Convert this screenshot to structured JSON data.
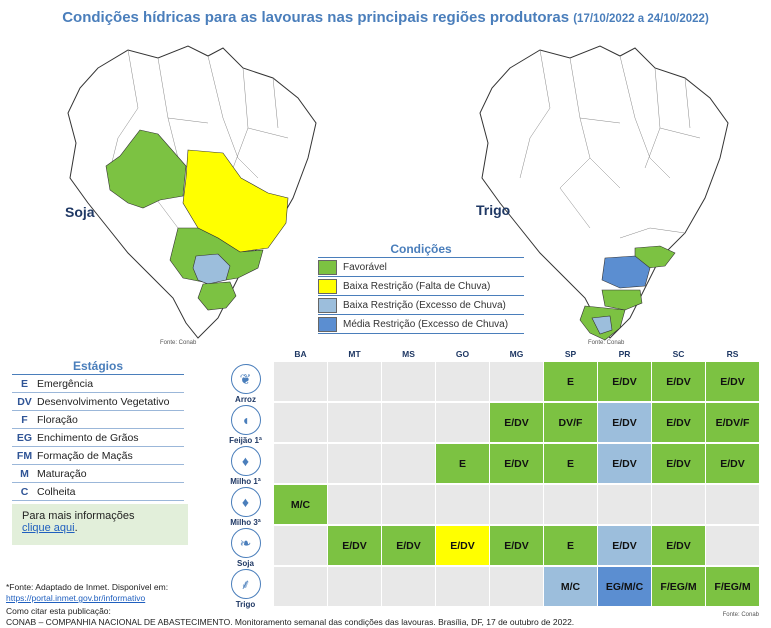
{
  "header": {
    "title": "Condições hídricas para as lavouras nas principais regiões produtoras",
    "period": "(17/10/2022 a 24/10/2022)"
  },
  "maps": {
    "left_label": "Soja",
    "right_label": "Trigo",
    "source": "Fonte: Conab"
  },
  "colors": {
    "favoravel": "#7cc242",
    "baixa_falta": "#ffff00",
    "baixa_excesso": "#9cbedc",
    "media_excesso": "#5b8ed1",
    "empty": "#e8e8e8",
    "map_bg": "#ffffff",
    "border": "#333333"
  },
  "conditions_legend": {
    "title": "Condições",
    "items": [
      {
        "label": "Favorável",
        "color": "#7cc242"
      },
      {
        "label": "Baixa Restrição (Falta de Chuva)",
        "color": "#ffff00"
      },
      {
        "label": "Baixa Restrição (Excesso de Chuva)",
        "color": "#9cbedc"
      },
      {
        "label": "Média Restrição (Excesso de Chuva)",
        "color": "#5b8ed1"
      }
    ]
  },
  "stages_legend": {
    "title": "Estágios",
    "items": [
      {
        "code": "E",
        "name": "Emergência"
      },
      {
        "code": "DV",
        "name": "Desenvolvimento Vegetativo"
      },
      {
        "code": "F",
        "name": "Floração"
      },
      {
        "code": "EG",
        "name": "Enchimento de Grãos"
      },
      {
        "code": "FM",
        "name": "Formação de Maçãs"
      },
      {
        "code": "M",
        "name": "Maturação"
      },
      {
        "code": "C",
        "name": "Colheita"
      }
    ]
  },
  "info": {
    "text": "Para mais informações",
    "link": "clique aqui",
    "suffix": "."
  },
  "footnotes": {
    "fonte": "*Fonte: Adaptado de Inmet. Disponível em:",
    "url": "https://portal.inmet.gov.br/informativo",
    "cite_label": "Como citar esta publicação:",
    "citation": "CONAB – COMPANHIA NACIONAL DE ABASTECIMENTO. Monitoramento semanal das condições das lavouras. Brasília, DF, 17 de outubro de 2022."
  },
  "table": {
    "source": "Fonte: Conab",
    "states": [
      "BA",
      "MT",
      "MS",
      "GO",
      "MG",
      "SP",
      "PR",
      "SC",
      "RS"
    ],
    "crops": [
      {
        "name": "Arroz",
        "icon": "rice-icon",
        "glyph": "❦",
        "cells": [
          "",
          "",
          "",
          "",
          "",
          "E",
          "E/DV",
          "E/DV",
          "E/DV"
        ],
        "colors": [
          "empty",
          "empty",
          "empty",
          "empty",
          "empty",
          "favoravel",
          "favoravel",
          "favoravel",
          "favoravel"
        ]
      },
      {
        "name": "Feijão 1ª",
        "icon": "bean-icon",
        "glyph": "◖",
        "cells": [
          "",
          "",
          "",
          "",
          "E/DV",
          "DV/F",
          "E/DV",
          "E/DV",
          "E/DV/F"
        ],
        "colors": [
          "empty",
          "empty",
          "empty",
          "empty",
          "favoravel",
          "favoravel",
          "baixa_excesso",
          "favoravel",
          "favoravel"
        ]
      },
      {
        "name": "Milho 1ª",
        "icon": "corn-icon",
        "glyph": "♦",
        "cells": [
          "",
          "",
          "",
          "E",
          "E/DV",
          "E",
          "E/DV",
          "E/DV",
          "E/DV"
        ],
        "colors": [
          "empty",
          "empty",
          "empty",
          "favoravel",
          "favoravel",
          "favoravel",
          "baixa_excesso",
          "favoravel",
          "favoravel"
        ]
      },
      {
        "name": "Milho 3ª",
        "icon": "corn-icon",
        "glyph": "♦",
        "cells": [
          "M/C",
          "",
          "",
          "",
          "",
          "",
          "",
          "",
          ""
        ],
        "colors": [
          "favoravel",
          "empty",
          "empty",
          "empty",
          "empty",
          "empty",
          "empty",
          "empty",
          "empty"
        ]
      },
      {
        "name": "Soja",
        "icon": "soybean-icon",
        "glyph": "❧",
        "cells": [
          "",
          "E/DV",
          "E/DV",
          "E/DV",
          "E/DV",
          "E",
          "E/DV",
          "E/DV",
          ""
        ],
        "colors": [
          "empty",
          "favoravel",
          "favoravel",
          "baixa_falta",
          "favoravel",
          "favoravel",
          "baixa_excesso",
          "favoravel",
          "empty"
        ]
      },
      {
        "name": "Trigo",
        "icon": "wheat-icon",
        "glyph": "⸙",
        "cells": [
          "",
          "",
          "",
          "",
          "",
          "M/C",
          "EG/M/C",
          "F/EG/M",
          "F/EG/M"
        ],
        "colors": [
          "empty",
          "empty",
          "empty",
          "empty",
          "empty",
          "baixa_excesso",
          "media_excesso",
          "favoravel",
          "favoravel"
        ]
      }
    ]
  }
}
